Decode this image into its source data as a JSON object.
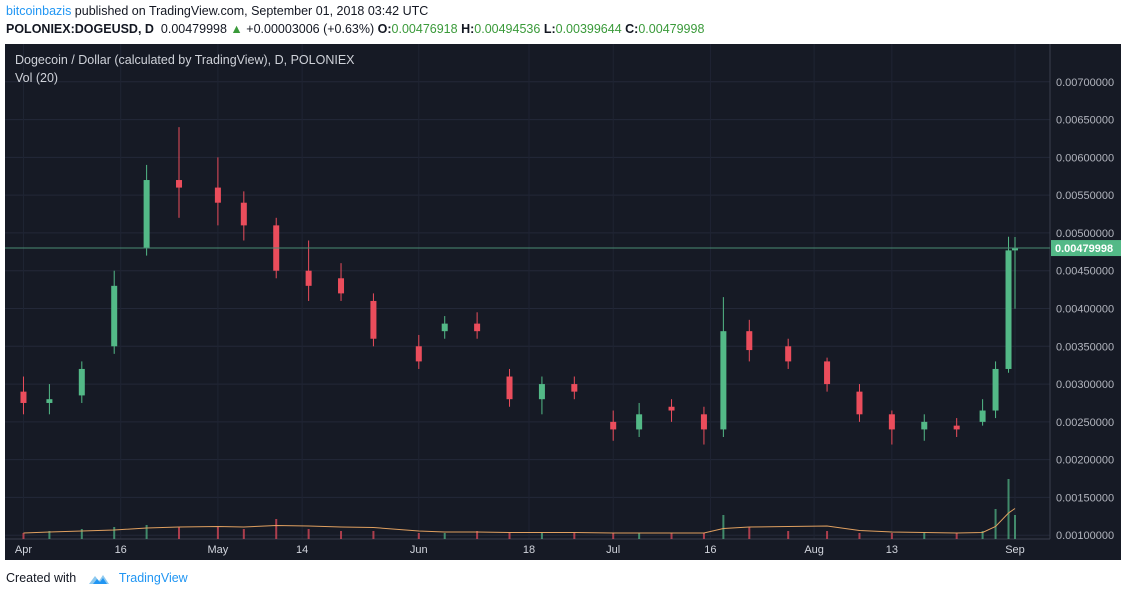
{
  "header": {
    "author": "bitcoinbazis",
    "published_text": " published on TradingView.com, September 01, 2018 03:42 UTC",
    "symbol": "POLONIEX:DOGEUSD, D",
    "price": "0.00479998",
    "change": "+0.00003006 (+0.63%)",
    "o_label": "O:",
    "o_value": "0.00476918",
    "h_label": "H:",
    "h_value": "0.00494536",
    "l_label": "L:",
    "l_value": "0.00399644",
    "c_label": "C:",
    "c_value": "0.00479998"
  },
  "chart": {
    "title": "Dogecoin / Dollar (calculated by TradingView), D, POLONIEX",
    "volume_label": "Vol (20)",
    "last_price_label": "0.00479998"
  },
  "footer": {
    "created_with": "Created with",
    "brand": "TradingView"
  },
  "colors": {
    "background": "#161a25",
    "up": "#53b987",
    "down": "#eb4d5c",
    "last_price_line": "#4a8c74",
    "volume_ma": "#e0a060"
  },
  "chart_data": {
    "type": "candlestick",
    "title": "Dogecoin / Dollar (calculated by TradingView), D, POLONIEX",
    "xlabel": "",
    "ylabel": "",
    "ylim": [
      0.00095,
      0.0075
    ],
    "y_ticks": [
      "0.00700000",
      "0.00650000",
      "0.00600000",
      "0.00550000",
      "0.00500000",
      "0.00450000",
      "0.00400000",
      "0.00350000",
      "0.00300000",
      "0.00250000",
      "0.00200000",
      "0.00150000",
      "0.00100000"
    ],
    "x_ticks": [
      "Apr",
      "16",
      "May",
      "14",
      "Jun",
      "18",
      "Jul",
      "16",
      "Aug",
      "13",
      "Sep"
    ],
    "x_range": [
      "2018-03-31",
      "2018-09-01"
    ],
    "grid": true,
    "series": [
      {
        "type": "candlestick",
        "dates": [
          "2018-04-01",
          "2018-04-05",
          "2018-04-10",
          "2018-04-15",
          "2018-04-20",
          "2018-04-25",
          "2018-05-01",
          "2018-05-05",
          "2018-05-10",
          "2018-05-15",
          "2018-05-20",
          "2018-05-25",
          "2018-06-01",
          "2018-06-05",
          "2018-06-10",
          "2018-06-15",
          "2018-06-20",
          "2018-06-25",
          "2018-07-01",
          "2018-07-05",
          "2018-07-10",
          "2018-07-15",
          "2018-07-18",
          "2018-07-22",
          "2018-07-28",
          "2018-08-03",
          "2018-08-08",
          "2018-08-13",
          "2018-08-18",
          "2018-08-23",
          "2018-08-27",
          "2018-08-29",
          "2018-08-31",
          "2018-09-01"
        ],
        "open": [
          0.0029,
          0.00275,
          0.00285,
          0.0035,
          0.0048,
          0.0057,
          0.0056,
          0.0054,
          0.0051,
          0.0045,
          0.0044,
          0.0041,
          0.0035,
          0.0037,
          0.0038,
          0.0031,
          0.0028,
          0.003,
          0.0025,
          0.0024,
          0.0027,
          0.0026,
          0.0024,
          0.0037,
          0.0035,
          0.0033,
          0.0029,
          0.0026,
          0.0024,
          0.00245,
          0.0025,
          0.00265,
          0.0032,
          0.00476918
        ],
        "close": [
          0.00275,
          0.0028,
          0.0032,
          0.0043,
          0.0057,
          0.0056,
          0.0054,
          0.0051,
          0.0045,
          0.0043,
          0.0042,
          0.0036,
          0.0033,
          0.0038,
          0.0037,
          0.0028,
          0.003,
          0.0029,
          0.0024,
          0.0026,
          0.00265,
          0.0024,
          0.0037,
          0.00345,
          0.0033,
          0.003,
          0.0026,
          0.0024,
          0.0025,
          0.0024,
          0.00265,
          0.0032,
          0.00476918,
          0.00479998
        ],
        "high": [
          0.0031,
          0.003,
          0.0033,
          0.0045,
          0.0059,
          0.0064,
          0.006,
          0.00555,
          0.0052,
          0.0049,
          0.0046,
          0.0042,
          0.00365,
          0.0039,
          0.00395,
          0.0032,
          0.0031,
          0.0031,
          0.00265,
          0.00275,
          0.0028,
          0.0027,
          0.00415,
          0.00385,
          0.0036,
          0.00335,
          0.003,
          0.00265,
          0.0026,
          0.00255,
          0.0028,
          0.0033,
          0.00495,
          0.00494536
        ],
        "low": [
          0.0026,
          0.0026,
          0.00275,
          0.0034,
          0.0047,
          0.0052,
          0.0051,
          0.0049,
          0.0044,
          0.0041,
          0.0041,
          0.0035,
          0.0032,
          0.0036,
          0.0036,
          0.0027,
          0.0026,
          0.0028,
          0.00225,
          0.0023,
          0.0025,
          0.0022,
          0.0023,
          0.0033,
          0.0032,
          0.0029,
          0.0025,
          0.0022,
          0.00225,
          0.0023,
          0.00245,
          0.00255,
          0.00315,
          0.00399644
        ]
      },
      {
        "name": "Vol (20)",
        "type": "volume",
        "values": [
          3,
          4,
          5,
          6,
          7,
          6,
          6,
          5,
          10,
          5,
          4,
          4,
          3,
          3,
          4,
          3,
          3,
          3,
          3,
          3,
          3,
          3,
          12,
          6,
          4,
          4,
          3,
          3,
          3,
          3,
          4,
          15,
          30,
          12
        ]
      }
    ],
    "last_price": 0.00479998,
    "last_date": "2018-09-01"
  }
}
